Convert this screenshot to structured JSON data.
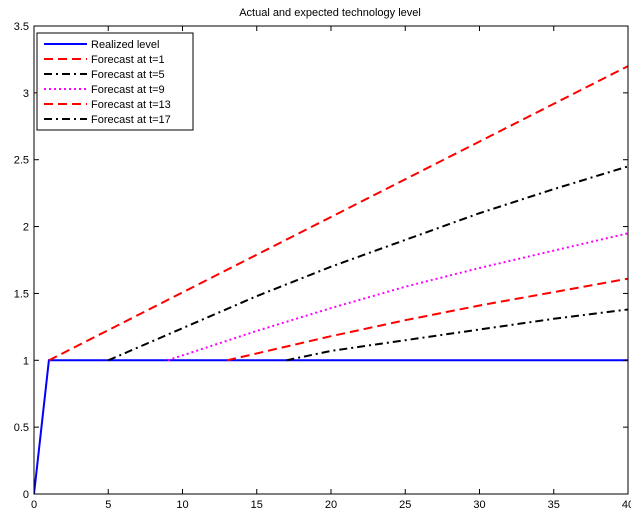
{
  "chart_data": {
    "type": "line",
    "title": "Actual and expected technology level",
    "xlabel": "",
    "ylabel": "",
    "xlim": [
      0,
      40
    ],
    "ylim": [
      0,
      3.5
    ],
    "xticks": [
      0,
      5,
      10,
      15,
      20,
      25,
      30,
      35,
      40
    ],
    "yticks": [
      0,
      0.5,
      1,
      1.5,
      2,
      2.5,
      3,
      3.5
    ],
    "grid": false,
    "legend_position": "top-left",
    "series": [
      {
        "name": "Realized level",
        "color": "#0000ff",
        "style": "solid",
        "x": [
          0,
          1,
          40
        ],
        "y": [
          0,
          1,
          1
        ]
      },
      {
        "name": "Forecast at t=1",
        "color": "#ff0000",
        "style": "dashed",
        "x": [
          1,
          40
        ],
        "y": [
          1,
          3.2
        ]
      },
      {
        "name": "Forecast at t=5",
        "color": "#000000",
        "style": "dashdot",
        "x": [
          5,
          10,
          15,
          20,
          25,
          30,
          35,
          40
        ],
        "y": [
          1,
          1.24,
          1.48,
          1.7,
          1.9,
          2.1,
          2.28,
          2.45
        ]
      },
      {
        "name": "Forecast at t=9",
        "color": "#ff00ff",
        "style": "dotted",
        "x": [
          9,
          15,
          20,
          25,
          30,
          35,
          40
        ],
        "y": [
          1,
          1.22,
          1.39,
          1.55,
          1.69,
          1.82,
          1.95
        ]
      },
      {
        "name": "Forecast at t=13",
        "color": "#ff0000",
        "style": "dashed",
        "x": [
          13,
          20,
          25,
          30,
          35,
          40
        ],
        "y": [
          1,
          1.18,
          1.3,
          1.41,
          1.51,
          1.61
        ]
      },
      {
        "name": "Forecast at t=17",
        "color": "#000000",
        "style": "dashdot",
        "x": [
          17,
          20,
          25,
          30,
          35,
          40
        ],
        "y": [
          1,
          1.07,
          1.15,
          1.23,
          1.31,
          1.38
        ]
      }
    ]
  }
}
